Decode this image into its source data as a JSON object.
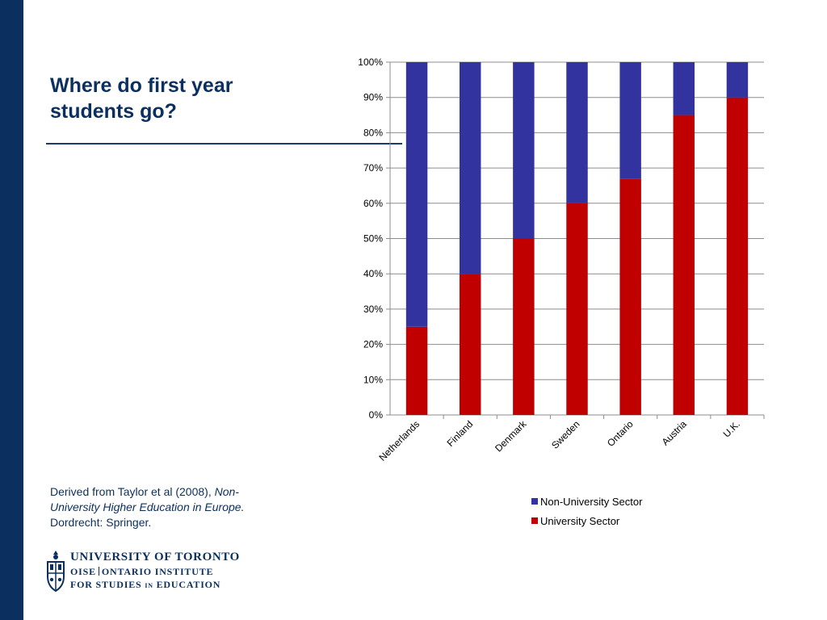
{
  "slide": {
    "title": "Where do first year students go?",
    "accent_color": "#0b2f5e"
  },
  "citation": {
    "prefix": "Derived from Taylor et al (2008), ",
    "book_title": "Non-University Higher Education in Europe.",
    "publisher": "Dordrecht: Springer."
  },
  "logo": {
    "line1": "UNIVERSITY OF TORONTO",
    "line2_left": "OISE",
    "line2_right": "ONTARIO INSTITUTE",
    "line3_left": "FOR STUDIES",
    "line3_in": "IN",
    "line3_right": "EDUCATION",
    "icon": "crest-icon"
  },
  "chart_data": {
    "type": "bar",
    "stacked": true,
    "categories": [
      "Netherlands",
      "Finland",
      "Denmark",
      "Sweden",
      "Ontario",
      "Austria",
      "U.K."
    ],
    "series": [
      {
        "name": "University Sector",
        "values": [
          25,
          40,
          50,
          60,
          67,
          85,
          90
        ],
        "color": "#c00000"
      },
      {
        "name": "Non-University Sector",
        "values": [
          75,
          60,
          50,
          40,
          33,
          15,
          10
        ],
        "color": "#3333a0"
      }
    ],
    "ylim": [
      0,
      100
    ],
    "yticks": [
      "0%",
      "10%",
      "20%",
      "30%",
      "40%",
      "50%",
      "60%",
      "70%",
      "80%",
      "90%",
      "100%"
    ],
    "grid": true,
    "legend_position": "bottom-right",
    "xlabel": "",
    "ylabel": ""
  }
}
